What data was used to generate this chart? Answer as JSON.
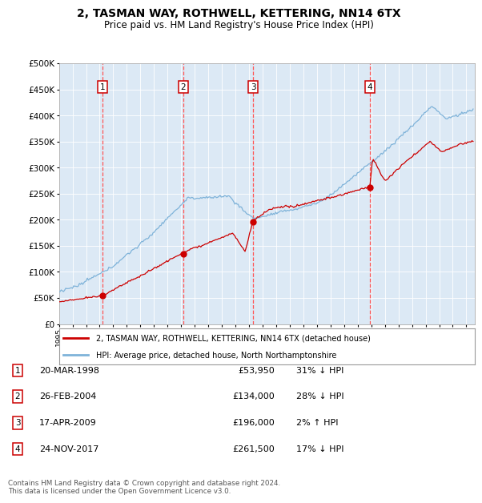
{
  "title": "2, TASMAN WAY, ROTHWELL, KETTERING, NN14 6TX",
  "subtitle": "Price paid vs. HM Land Registry's House Price Index (HPI)",
  "plot_bg_color": "#dce9f5",
  "hpi_color": "#7fb3d9",
  "price_color": "#cc0000",
  "marker_color": "#cc0000",
  "vline_color": "#ff5555",
  "ylim": [
    0,
    500000
  ],
  "yticks": [
    0,
    50000,
    100000,
    150000,
    200000,
    250000,
    300000,
    350000,
    400000,
    450000,
    500000
  ],
  "xlim_start": 1995.0,
  "xlim_end": 2025.6,
  "sales": [
    {
      "num": 1,
      "date_str": "20-MAR-1998",
      "date_x": 1998.22,
      "price": 53950
    },
    {
      "num": 2,
      "date_str": "26-FEB-2004",
      "date_x": 2004.16,
      "price": 134000
    },
    {
      "num": 3,
      "date_str": "17-APR-2009",
      "date_x": 2009.29,
      "price": 196000
    },
    {
      "num": 4,
      "date_str": "24-NOV-2017",
      "date_x": 2017.9,
      "price": 261500
    }
  ],
  "legend_label_red": "2, TASMAN WAY, ROTHWELL, KETTERING, NN14 6TX (detached house)",
  "legend_label_blue": "HPI: Average price, detached house, North Northamptonshire",
  "footer": "Contains HM Land Registry data © Crown copyright and database right 2024.\nThis data is licensed under the Open Government Licence v3.0.",
  "table_rows": [
    {
      "num": 1,
      "date": "20-MAR-1998",
      "price": "£53,950",
      "hpi": "31% ↓ HPI"
    },
    {
      "num": 2,
      "date": "26-FEB-2004",
      "price": "£134,000",
      "hpi": "28% ↓ HPI"
    },
    {
      "num": 3,
      "date": "17-APR-2009",
      "price": "£196,000",
      "hpi": "2% ↑ HPI"
    },
    {
      "num": 4,
      "date": "24-NOV-2017",
      "price": "£261,500",
      "hpi": "17% ↓ HPI"
    }
  ]
}
